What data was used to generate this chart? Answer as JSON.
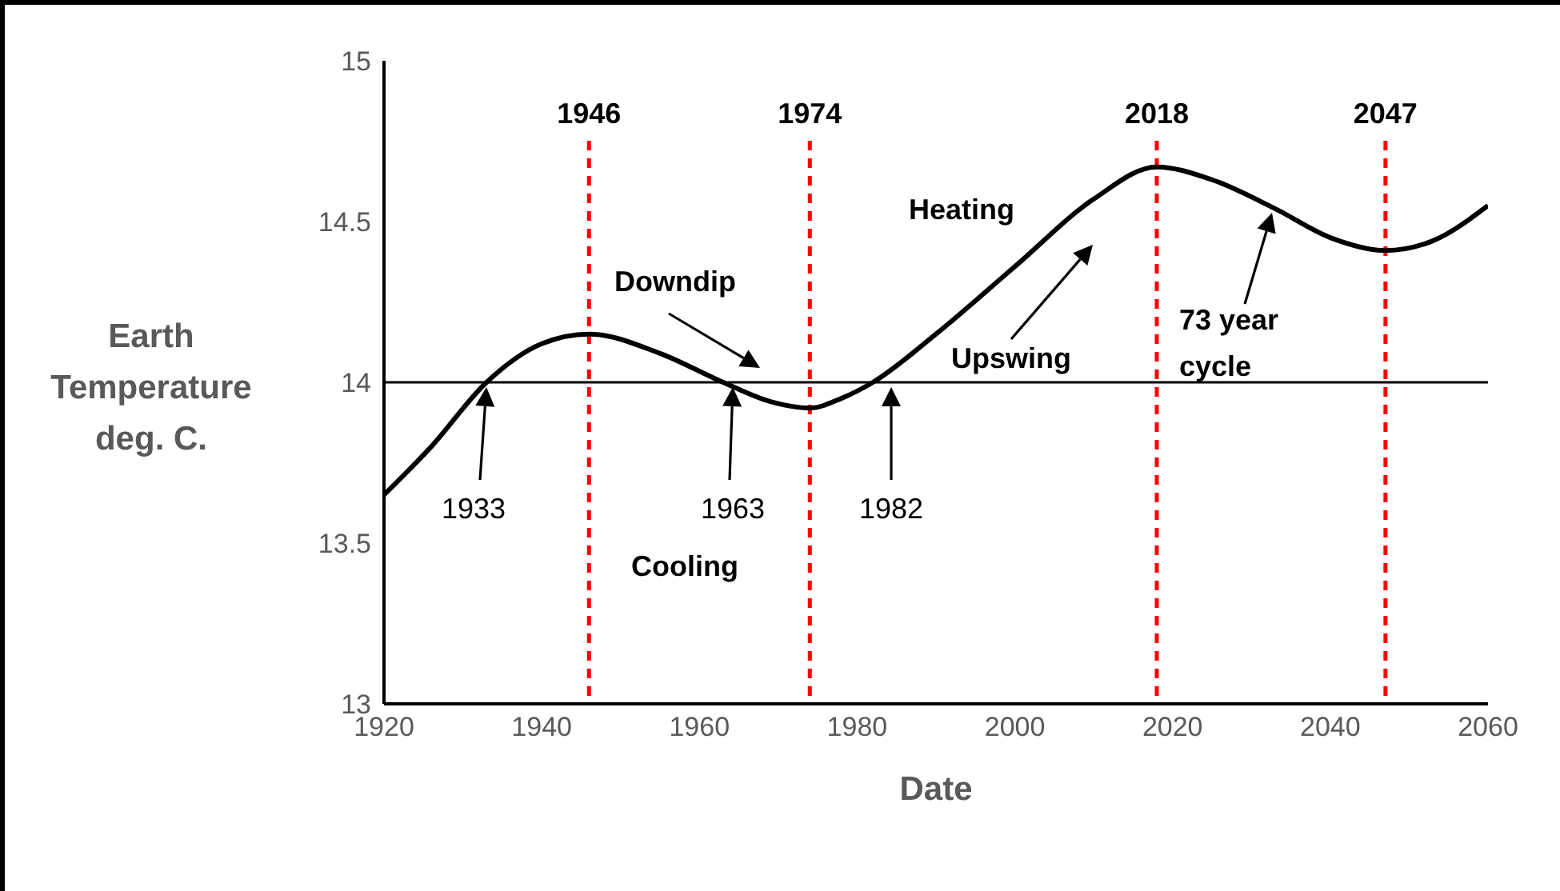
{
  "chart_data": {
    "type": "line",
    "xlabel": "Date",
    "ylabel": "Earth Temperature deg. C.",
    "xlim": [
      1920,
      2060
    ],
    "xticks": [
      1920,
      1940,
      1960,
      1980,
      2000,
      2020,
      2040,
      2060
    ],
    "ylim": [
      13,
      15
    ],
    "yticks": [
      13,
      13.5,
      14,
      14.5,
      15
    ],
    "grid": false,
    "legend": false,
    "marker": "none",
    "line_style": "solid",
    "series": [
      {
        "color": "#000000",
        "x": [
          1920,
          1926,
          1933,
          1940,
          1946,
          1955,
          1963,
          1969,
          1974,
          1978,
          1982,
          1990,
          2000,
          2010,
          2018,
          2025,
          2033,
          2040,
          2047,
          2053,
          2060
        ],
        "values": [
          13.65,
          13.8,
          14.0,
          14.12,
          14.15,
          14.09,
          14.0,
          13.94,
          13.92,
          13.95,
          14.0,
          14.15,
          14.36,
          14.57,
          14.67,
          14.63,
          14.54,
          14.45,
          14.41,
          14.44,
          14.55
        ]
      }
    ],
    "ref_lines": [
      {
        "axis": "y",
        "value": 14,
        "label": null,
        "color": "#000000",
        "line_style": "solid"
      },
      {
        "axis": "x",
        "value": 1946,
        "label": "1946",
        "color": "#ff0000",
        "line_style": "dashed"
      },
      {
        "axis": "x",
        "value": 1974,
        "label": "1974",
        "color": "#ff0000",
        "line_style": "dashed"
      },
      {
        "axis": "x",
        "value": 2018,
        "label": "2018",
        "color": "#ff0000",
        "line_style": "dashed"
      },
      {
        "axis": "x",
        "value": 2047,
        "label": "2047",
        "color": "#ff0000",
        "line_style": "dashed"
      }
    ],
    "annotations": [
      "1933",
      "1963",
      "1982",
      "Downdip",
      "Upswing",
      "73 year cycle",
      "Heating",
      "Cooling"
    ]
  }
}
